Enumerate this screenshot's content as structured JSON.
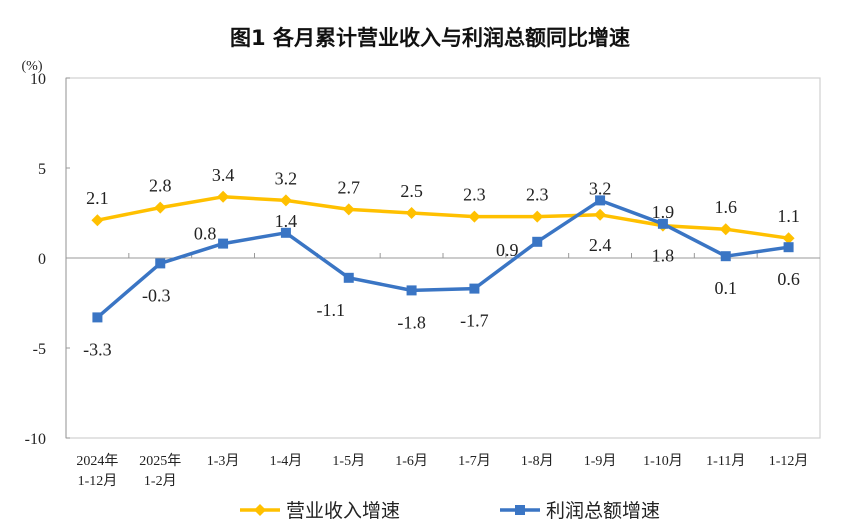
{
  "chart_data": {
    "type": "line",
    "title": "图1  各月累计营业收入与利润总额同比增速",
    "ylabel": "(%)",
    "xlabel": "",
    "ylim": [
      -10,
      10
    ],
    "yticks": [
      10,
      5,
      0,
      -5,
      -10
    ],
    "grid": false,
    "legend": "bottom",
    "categories": [
      [
        "2024年",
        "1-12月"
      ],
      [
        "2025年",
        "1-2月"
      ],
      [
        "1-3月"
      ],
      [
        "1-4月"
      ],
      [
        "1-5月"
      ],
      [
        "1-6月"
      ],
      [
        "1-7月"
      ],
      [
        "1-8月"
      ],
      [
        "1-9月"
      ],
      [
        "1-10月"
      ],
      [
        "1-11月"
      ],
      [
        "1-12月"
      ]
    ],
    "series": [
      {
        "name": "营业收入增速",
        "color": "#FFC000",
        "marker": "diamond",
        "values": [
          2.1,
          2.8,
          3.4,
          3.2,
          2.7,
          2.5,
          2.3,
          2.3,
          2.4,
          1.8,
          1.6,
          1.1
        ]
      },
      {
        "name": "利润总额增速",
        "color": "#3A75C4",
        "marker": "square",
        "values": [
          -3.3,
          -0.3,
          0.8,
          1.4,
          -1.1,
          -1.8,
          -1.7,
          0.9,
          3.2,
          1.9,
          0.1,
          0.6
        ]
      }
    ]
  }
}
